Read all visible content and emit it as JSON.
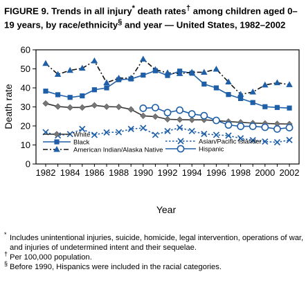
{
  "figure": {
    "title_parts": [
      "FIGURE 9. Trends in all injury",
      "*",
      " death rates",
      "†",
      " among children aged 0–19 years, by race/ethnicity",
      "§",
      " and year — United States, 1982–2002"
    ],
    "footnotes": [
      {
        "marker": "*",
        "text": "Includes unintentional injuries, suicide, homicide, legal intervention, operations of war, and injuries of undetermined intent and their sequelae."
      },
      {
        "marker": "†",
        "text": "Per 100,000 population."
      },
      {
        "marker": "§",
        "text": "Before 1990, Hispanics were included in the racial categories."
      }
    ]
  },
  "chart_data": {
    "type": "line",
    "xlabel": "Year",
    "ylabel": "Death rate",
    "xlim": [
      1982,
      2002
    ],
    "ylim": [
      0,
      60
    ],
    "x_ticks": [
      1982,
      1984,
      1986,
      1988,
      1990,
      1992,
      1994,
      1996,
      1998,
      2000,
      2002
    ],
    "y_ticks": [
      0,
      10,
      20,
      30,
      40,
      50,
      60
    ],
    "grid": false,
    "legend_position": "bottom-left, two columns",
    "series": [
      {
        "name": "White",
        "marker": "diamond",
        "line_style": "solid",
        "x": [
          1982,
          1983,
          1984,
          1985,
          1986,
          1987,
          1988,
          1989,
          1990,
          1991,
          1992,
          1993,
          1994,
          1995,
          1996,
          1997,
          1998,
          1999,
          2000,
          2001,
          2002
        ],
        "values": [
          31.8,
          30.2,
          29.7,
          29.7,
          30.8,
          30.1,
          30.0,
          28.7,
          25.3,
          24.9,
          23.5,
          23.3,
          23.2,
          23.2,
          22.8,
          22.3,
          21.9,
          21.5,
          21.3,
          21.1,
          21.0
        ]
      },
      {
        "name": "Black",
        "marker": "square",
        "line_style": "solid",
        "x": [
          1982,
          1983,
          1984,
          1985,
          1986,
          1987,
          1988,
          1989,
          1990,
          1991,
          1992,
          1993,
          1994,
          1995,
          1996,
          1997,
          1998,
          1999,
          2000,
          2001,
          2002
        ],
        "values": [
          38.3,
          36.4,
          35.0,
          35.8,
          39.0,
          40.0,
          44.3,
          44.7,
          46.7,
          49.0,
          46.5,
          48.8,
          47.7,
          42.0,
          40.0,
          36.5,
          34.4,
          32.3,
          30.1,
          29.7,
          29.4
        ]
      },
      {
        "name": "American Indian/Alaska Native",
        "marker": "triangle",
        "line_style": "dash-dot",
        "x": [
          1982,
          1983,
          1984,
          1985,
          1986,
          1987,
          1988,
          1989,
          1990,
          1991,
          1992,
          1993,
          1994,
          1995,
          1996,
          1997,
          1998,
          1999,
          2000,
          2001,
          2002
        ],
        "values": [
          52.8,
          47.1,
          49.2,
          50.3,
          54.2,
          42.7,
          45.1,
          45.1,
          55.1,
          49.6,
          47.9,
          47.5,
          48.2,
          48.2,
          49.8,
          43.1,
          36.6,
          37.8,
          41.5,
          42.7,
          41.7
        ]
      },
      {
        "name": "Asian/Pacific Islander",
        "marker": "x",
        "line_style": "dotted",
        "x": [
          1982,
          1983,
          1984,
          1985,
          1986,
          1987,
          1988,
          1989,
          1990,
          1991,
          1992,
          1993,
          1994,
          1995,
          1996,
          1997,
          1998,
          1999,
          2000,
          2001,
          2002
        ],
        "values": [
          16.7,
          15.0,
          15.7,
          18.4,
          15.3,
          16.6,
          16.7,
          18.4,
          18.9,
          15.3,
          17.3,
          19.1,
          17.3,
          15.8,
          15.3,
          14.9,
          13.5,
          12.5,
          11.8,
          11.4,
          12.6
        ]
      },
      {
        "name": "Hispanic",
        "marker": "circle",
        "line_style": "solid",
        "x": [
          1990,
          1991,
          1992,
          1993,
          1994,
          1995,
          1996,
          1997,
          1998,
          1999,
          2000,
          2001,
          2002
        ],
        "values": [
          29.3,
          29.6,
          27.0,
          28.3,
          26.3,
          25.4,
          22.9,
          20.5,
          19.8,
          19.8,
          19.3,
          18.4,
          19.1
        ]
      }
    ]
  }
}
